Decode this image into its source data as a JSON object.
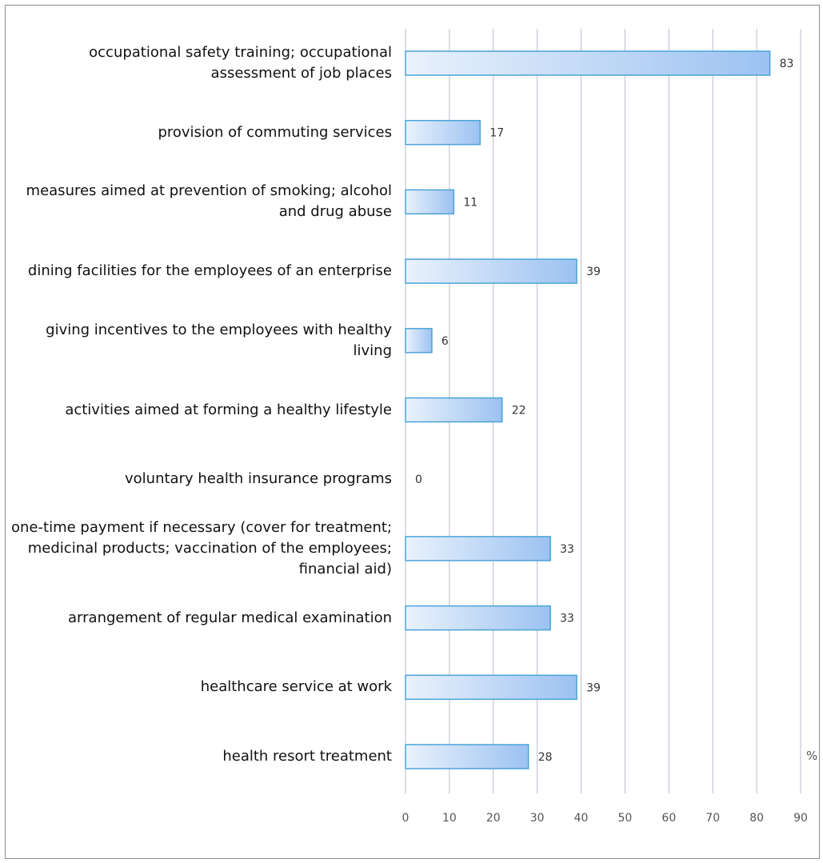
{
  "chart_data": {
    "type": "bar",
    "orientation": "horizontal",
    "categories": [
      "occupational safety training; occupational assessment of job places",
      "provision of commuting services",
      "measures aimed at prevention of smoking; alcohol and drug abuse",
      "dining facilities for the employees of an enterprise",
      "giving incentives to the employees with healthy living",
      "activities aimed at forming a healthy lifestyle",
      "voluntary health insurance programs",
      "one-time payment if necessary (cover for treatment; medicinal products; vaccination of the employees; financial aid)",
      "arrangement of regular medical examination",
      "healthcare service at work",
      "health resort treatment"
    ],
    "values": [
      83,
      17,
      11,
      39,
      6,
      22,
      0,
      33,
      33,
      39,
      28
    ],
    "value_labels": [
      "83",
      "17",
      "11",
      "39",
      "6",
      "22",
      "0",
      "33",
      "33",
      "39",
      "28"
    ],
    "title": "",
    "xlabel": "",
    "ylabel": "",
    "unit_label": "%",
    "xlim": [
      0,
      90
    ],
    "xticks": [
      "0",
      "10",
      "20",
      "30",
      "40",
      "50",
      "60",
      "70",
      "80",
      "90"
    ],
    "grid": true,
    "legend": "none",
    "colors": {
      "bar_fill_start": "#eaf2fc",
      "bar_fill_end": "#9cc2f1",
      "bar_stroke": "#4aa3d8",
      "gridline": "#b9bccb"
    }
  }
}
